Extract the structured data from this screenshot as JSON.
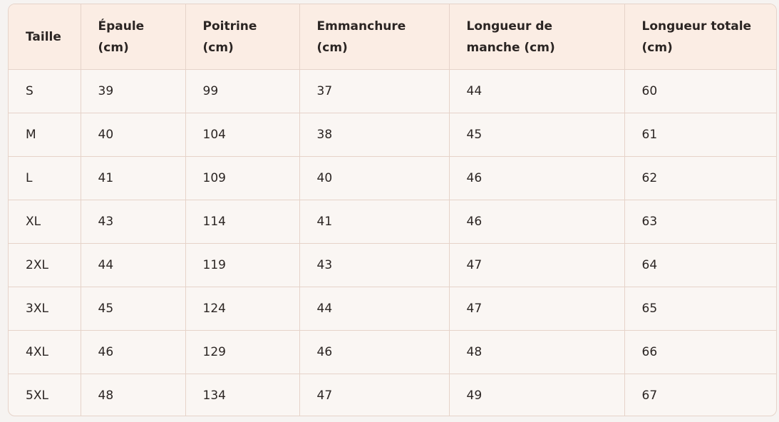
{
  "table": {
    "header": [
      "Taille",
      "Épaule (cm)",
      "Poitrine (cm)",
      "Emmanchure (cm)",
      "Longueur de manche (cm)",
      "Longueur totale (cm)"
    ],
    "rows": [
      [
        "S",
        "39",
        "99",
        "37",
        "44",
        "60"
      ],
      [
        "M",
        "40",
        "104",
        "38",
        "45",
        "61"
      ],
      [
        "L",
        "41",
        "109",
        "40",
        "46",
        "62"
      ],
      [
        "XL",
        "43",
        "114",
        "41",
        "46",
        "63"
      ],
      [
        "2XL",
        "44",
        "119",
        "43",
        "47",
        "64"
      ],
      [
        "3XL",
        "45",
        "124",
        "44",
        "47",
        "65"
      ],
      [
        "4XL",
        "46",
        "129",
        "46",
        "48",
        "66"
      ],
      [
        "5XL",
        "48",
        "134",
        "47",
        "49",
        "67"
      ]
    ]
  }
}
